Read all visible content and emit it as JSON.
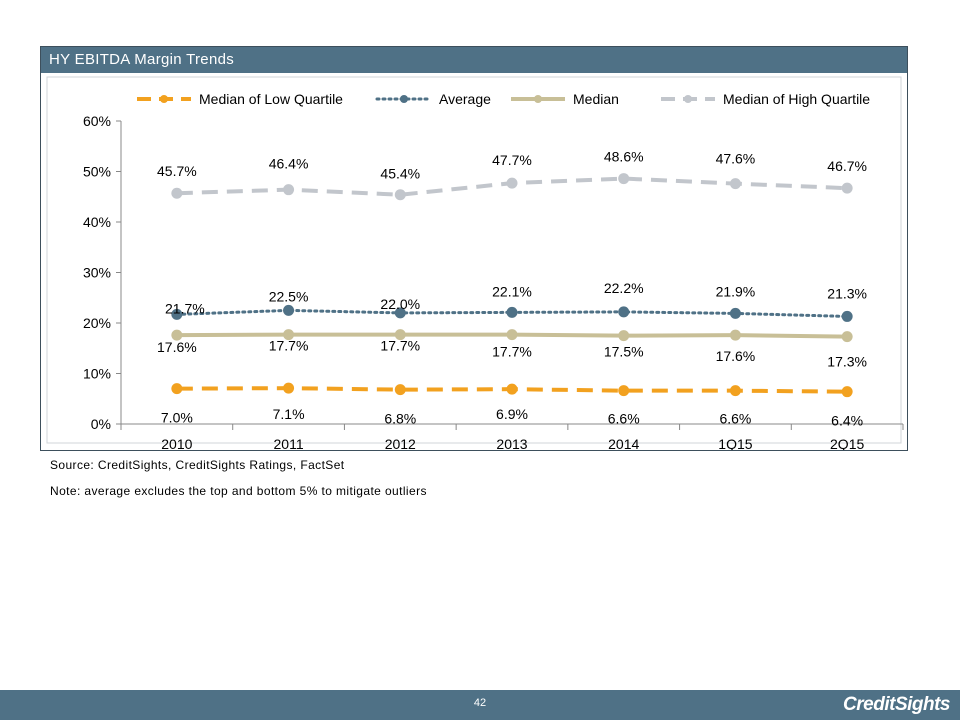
{
  "panel": {
    "title": "HY EBITDA Margin Trends"
  },
  "notes": {
    "source": "Source: CreditSights, CreditSights Ratings, FactSet",
    "note": "Note: average excludes the top and bottom 5% to mitigate outliers"
  },
  "footer": {
    "page_number": "42",
    "brand": "CreditSights"
  },
  "colors": {
    "header_bg": "#4f7186",
    "low": "#f2a11f",
    "avg": "#4f7186",
    "median": "#c8bf97",
    "high": "#c2c6cc"
  },
  "chart_data": {
    "type": "line",
    "categories": [
      "2010",
      "2011",
      "2012",
      "2013",
      "2014",
      "1Q15",
      "2Q15"
    ],
    "ylim": [
      0,
      60
    ],
    "yticks": [
      "0%",
      "10%",
      "20%",
      "30%",
      "40%",
      "50%",
      "60%"
    ],
    "legend_position": "top",
    "series": [
      {
        "name": "Median of Low Quartile",
        "style": "dashed",
        "color": "#f2a11f",
        "values": [
          7.0,
          7.1,
          6.8,
          6.9,
          6.6,
          6.6,
          6.4
        ],
        "labels": [
          "7.0%",
          "7.1%",
          "6.8%",
          "6.9%",
          "6.6%",
          "6.6%",
          "6.4%"
        ]
      },
      {
        "name": "Average",
        "style": "dotted",
        "color": "#4f7186",
        "values": [
          21.7,
          22.5,
          22.0,
          22.1,
          22.2,
          21.9,
          21.3
        ],
        "labels": [
          "21.7%",
          "22.5%",
          "22.0%",
          "22.1%",
          "22.2%",
          "21.9%",
          "21.3%"
        ]
      },
      {
        "name": "Median",
        "style": "solid",
        "color": "#c8bf97",
        "values": [
          17.6,
          17.7,
          17.7,
          17.7,
          17.5,
          17.6,
          17.3
        ],
        "labels": [
          "17.6%",
          "17.7%",
          "17.7%",
          "17.7%",
          "17.5%",
          "17.6%",
          "17.3%"
        ]
      },
      {
        "name": "Median of High Quartile",
        "style": "dashed",
        "color": "#c2c6cc",
        "values": [
          45.7,
          46.4,
          45.4,
          47.7,
          48.6,
          47.6,
          46.7
        ],
        "labels": [
          "45.7%",
          "46.4%",
          "45.4%",
          "47.7%",
          "48.6%",
          "47.6%",
          "46.7%"
        ]
      }
    ]
  }
}
